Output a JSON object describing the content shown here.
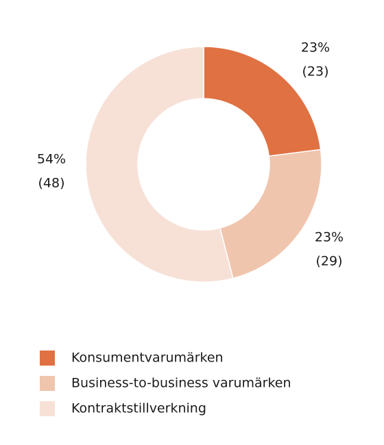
{
  "chart_data": {
    "type": "donut",
    "categories": [
      "Konsumentvarumärken",
      "Business-to-business varumärken",
      "Kontraktstillverkning"
    ],
    "values": [
      23,
      23,
      54
    ],
    "value_labels": [
      "23%",
      "23%",
      "54%"
    ],
    "prior_labels": [
      "(23)",
      "(29)",
      "(48)"
    ],
    "colors": [
      "#e07142",
      "#f0c5ad",
      "#f7e1d7"
    ]
  }
}
